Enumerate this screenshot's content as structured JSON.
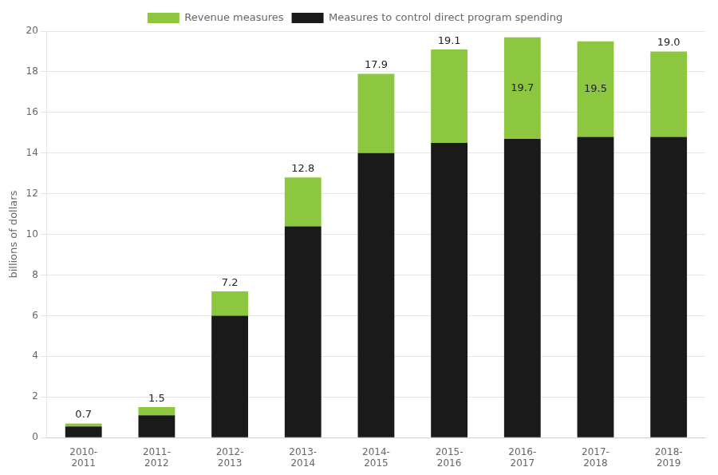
{
  "chart_data": {
    "type": "bar",
    "stacked": true,
    "categories": [
      "2010-\n2011",
      "2011-\n2012",
      "2012-\n2013",
      "2013-\n2014",
      "2014-\n2015",
      "2015-\n2016",
      "2016-\n2017",
      "2017-\n2018",
      "2018-\n2019"
    ],
    "series": [
      {
        "name": "Measures to control direct program spending",
        "color": "#1a1a1a",
        "values": [
          0.55,
          1.1,
          6.0,
          10.4,
          14.0,
          14.5,
          14.7,
          14.8,
          14.8
        ]
      },
      {
        "name": "Revenue measures",
        "color": "#8dc63f",
        "values": [
          0.15,
          0.4,
          1.2,
          2.4,
          3.9,
          4.6,
          5.0,
          4.7,
          4.2
        ]
      }
    ],
    "totals": [
      0.7,
      1.5,
      7.2,
      12.8,
      17.9,
      19.1,
      19.7,
      19.5,
      19.0
    ],
    "total_labels": [
      "0.7",
      "1.5",
      "7.2",
      "12.8",
      "17.9",
      "19.1",
      "19.7",
      "19.5",
      "19.0"
    ],
    "ylabel": "billions of dollars",
    "ylim": [
      0,
      20
    ],
    "yticks": [
      0,
      2,
      4,
      6,
      8,
      10,
      12,
      14,
      16,
      18,
      20
    ],
    "grid": true,
    "legend": "top"
  }
}
